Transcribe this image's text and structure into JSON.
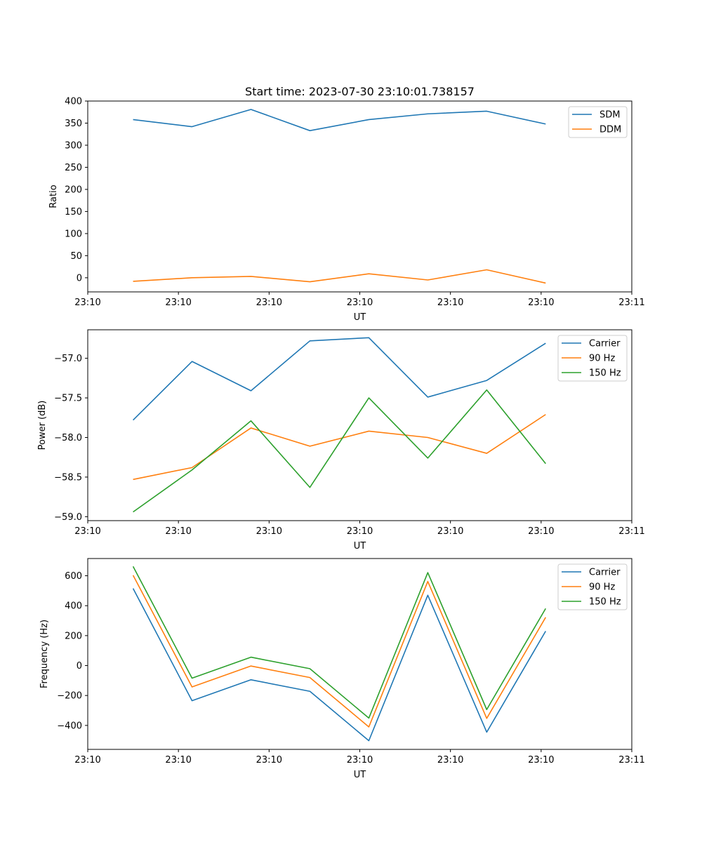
{
  "chart_data": [
    {
      "type": "line",
      "title": "Start time: 2023-07-30 23:10:01.738157",
      "xlabel": "UT",
      "ylabel": "Ratio",
      "xlim": [
        0,
        12
      ],
      "ylim": [
        -32,
        400
      ],
      "x_tick_positions": [
        0,
        2,
        4,
        6,
        8,
        10,
        12
      ],
      "x_tick_labels": [
        "23:10",
        "23:10",
        "23:10",
        "23:10",
        "23:10",
        "23:10",
        "23:11"
      ],
      "y_ticks": [
        0,
        50,
        100,
        150,
        200,
        250,
        300,
        350,
        400
      ],
      "legend_position": "top-right",
      "x": [
        1,
        2.3,
        3.6,
        4.9,
        6.2,
        7.5,
        8.8,
        10.1
      ],
      "series": [
        {
          "name": "SDM",
          "color": "#1f77b4",
          "values": [
            358,
            342,
            381,
            333,
            358,
            371,
            377,
            348
          ]
        },
        {
          "name": "DDM",
          "color": "#ff7f0e",
          "values": [
            -8,
            0,
            3,
            -9,
            9,
            -5,
            18,
            -12
          ]
        }
      ]
    },
    {
      "type": "line",
      "title": "",
      "xlabel": "UT",
      "ylabel": "Power (dB)",
      "xlim": [
        0,
        12
      ],
      "ylim": [
        -59.05,
        -56.64
      ],
      "x_tick_positions": [
        0,
        2,
        4,
        6,
        8,
        10,
        12
      ],
      "x_tick_labels": [
        "23:10",
        "23:10",
        "23:10",
        "23:10",
        "23:10",
        "23:10",
        "23:11"
      ],
      "y_ticks": [
        -59.0,
        -58.5,
        -58.0,
        -57.5,
        -57.0
      ],
      "y_tick_labels": [
        "−59.0",
        "−58.5",
        "−58.0",
        "−57.5",
        "−57.0"
      ],
      "legend_position": "top-right",
      "x": [
        1,
        2.3,
        3.6,
        4.9,
        6.2,
        7.5,
        8.8,
        10.1
      ],
      "series": [
        {
          "name": "Carrier",
          "color": "#1f77b4",
          "values": [
            -57.78,
            -57.04,
            -57.41,
            -56.78,
            -56.74,
            -57.49,
            -57.28,
            -56.81
          ]
        },
        {
          "name": "90 Hz",
          "color": "#ff7f0e",
          "values": [
            -58.53,
            -58.38,
            -57.88,
            -58.11,
            -57.92,
            -58.0,
            -58.2,
            -57.71
          ]
        },
        {
          "name": "150 Hz",
          "color": "#2ca02c",
          "values": [
            -58.94,
            -58.41,
            -57.79,
            -58.63,
            -57.5,
            -58.26,
            -57.4,
            -58.33
          ]
        }
      ]
    },
    {
      "type": "line",
      "title": "",
      "xlabel": "UT",
      "ylabel": "Frequency (Hz)",
      "xlim": [
        0,
        12
      ],
      "ylim": [
        -560,
        715
      ],
      "x_tick_positions": [
        0,
        2,
        4,
        6,
        8,
        10,
        12
      ],
      "x_tick_labels": [
        "23:10",
        "23:10",
        "23:10",
        "23:10",
        "23:10",
        "23:10",
        "23:11"
      ],
      "y_ticks": [
        -400,
        -200,
        0,
        200,
        400,
        600
      ],
      "y_tick_labels": [
        "−400",
        "−200",
        "0",
        "200",
        "400",
        "600"
      ],
      "legend_position": "top-right",
      "x": [
        1,
        2.3,
        3.6,
        4.9,
        6.2,
        7.5,
        8.8,
        10.1
      ],
      "series": [
        {
          "name": "Carrier",
          "color": "#1f77b4",
          "values": [
            515,
            -235,
            -95,
            -172,
            -502,
            470,
            -445,
            230
          ]
        },
        {
          "name": "90 Hz",
          "color": "#ff7f0e",
          "values": [
            603,
            -143,
            -3,
            -80,
            -410,
            562,
            -353,
            322
          ]
        },
        {
          "name": "150 Hz",
          "color": "#2ca02c",
          "values": [
            662,
            -84,
            56,
            -21,
            -351,
            621,
            -294,
            381
          ]
        }
      ]
    }
  ]
}
